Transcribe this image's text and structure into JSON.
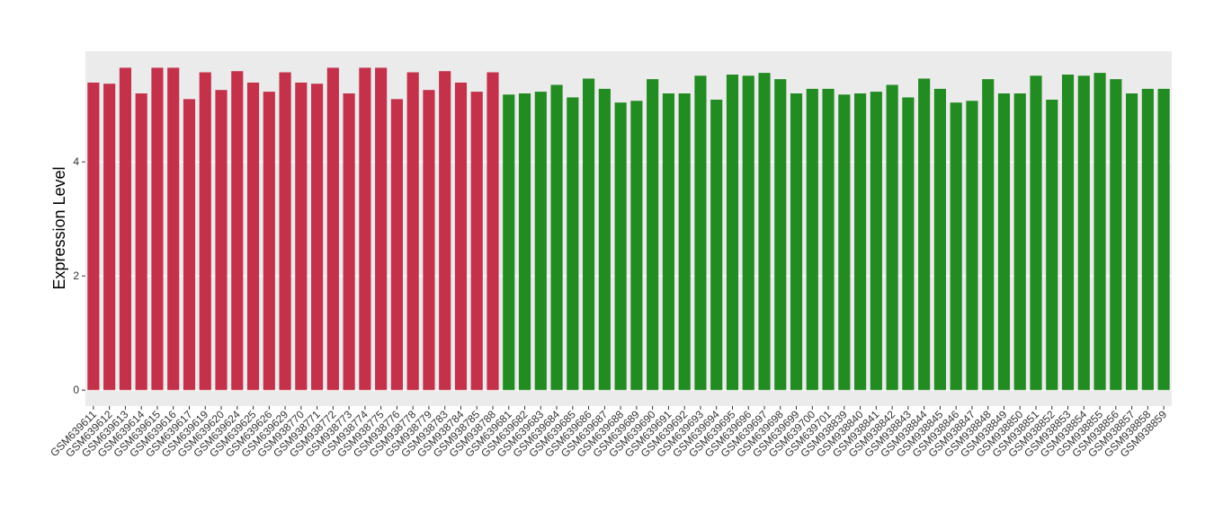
{
  "chart_data": {
    "type": "bar",
    "y_label": "Expression Level",
    "categories": [
      "GSM639611",
      "GSM639612",
      "GSM639613",
      "GSM639614",
      "GSM639615",
      "GSM639616",
      "GSM639617",
      "GSM639619",
      "GSM639620",
      "GSM639624",
      "GSM639625",
      "GSM639626",
      "GSM639629",
      "GSM938770",
      "GSM938771",
      "GSM938772",
      "GSM938773",
      "GSM938774",
      "GSM938775",
      "GSM938776",
      "GSM938778",
      "GSM938779",
      "GSM938783",
      "GSM938784",
      "GSM938785",
      "GSM938788",
      "GSM639681",
      "GSM639682",
      "GSM639683",
      "GSM639684",
      "GSM639685",
      "GSM639686",
      "GSM639687",
      "GSM639688",
      "GSM639689",
      "GSM639690",
      "GSM639691",
      "GSM639692",
      "GSM639693",
      "GSM639694",
      "GSM639695",
      "GSM639696",
      "GSM639697",
      "GSM639698",
      "GSM639699",
      "GSM639700",
      "GSM639701",
      "GSM938839",
      "GSM938840",
      "GSM938841",
      "GSM938842",
      "GSM938843",
      "GSM938844",
      "GSM938845",
      "GSM938846",
      "GSM938847",
      "GSM938848",
      "GSM938849",
      "GSM938850",
      "GSM938851",
      "GSM938852",
      "GSM938853",
      "GSM938854",
      "GSM938855",
      "GSM938856",
      "GSM938857",
      "GSM938858",
      "GSM938859"
    ],
    "values": [
      5.39,
      5.37,
      5.65,
      5.2,
      5.65,
      5.65,
      5.1,
      5.57,
      5.26,
      5.59,
      5.39,
      5.23,
      5.57,
      5.39,
      5.37,
      5.65,
      5.2,
      5.65,
      5.65,
      5.1,
      5.57,
      5.26,
      5.59,
      5.39,
      5.23,
      5.57,
      5.18,
      5.2,
      5.23,
      5.35,
      5.13,
      5.46,
      5.28,
      5.04,
      5.07,
      5.45,
      5.2,
      5.2,
      5.51,
      5.09,
      5.53,
      5.51,
      5.56,
      5.45,
      5.2,
      5.28,
      5.28,
      5.18,
      5.2,
      5.23,
      5.35,
      5.13,
      5.46,
      5.28,
      5.04,
      5.07,
      5.45,
      5.2,
      5.2,
      5.51,
      5.09,
      5.53,
      5.51,
      5.56,
      5.45,
      5.2,
      5.28,
      5.28
    ],
    "colors": [
      "#c4314b",
      "#c4314b",
      "#c4314b",
      "#c4314b",
      "#c4314b",
      "#c4314b",
      "#c4314b",
      "#c4314b",
      "#c4314b",
      "#c4314b",
      "#c4314b",
      "#c4314b",
      "#c4314b",
      "#c4314b",
      "#c4314b",
      "#c4314b",
      "#c4314b",
      "#c4314b",
      "#c4314b",
      "#c4314b",
      "#c4314b",
      "#c4314b",
      "#c4314b",
      "#c4314b",
      "#c4314b",
      "#c4314b",
      "#228b22",
      "#228b22",
      "#228b22",
      "#228b22",
      "#228b22",
      "#228b22",
      "#228b22",
      "#228b22",
      "#228b22",
      "#228b22",
      "#228b22",
      "#228b22",
      "#228b22",
      "#228b22",
      "#228b22",
      "#228b22",
      "#228b22",
      "#228b22",
      "#228b22",
      "#228b22",
      "#228b22",
      "#228b22",
      "#228b22",
      "#228b22",
      "#228b22",
      "#228b22",
      "#228b22",
      "#228b22",
      "#228b22",
      "#228b22",
      "#228b22",
      "#228b22",
      "#228b22",
      "#228b22",
      "#228b22",
      "#228b22",
      "#228b22",
      "#228b22",
      "#228b22",
      "#228b22",
      "#228b22",
      "#228b22"
    ],
    "ylim": [
      -0.28,
      5.94
    ],
    "yticks": [
      0,
      2,
      4
    ],
    "grid": true
  }
}
